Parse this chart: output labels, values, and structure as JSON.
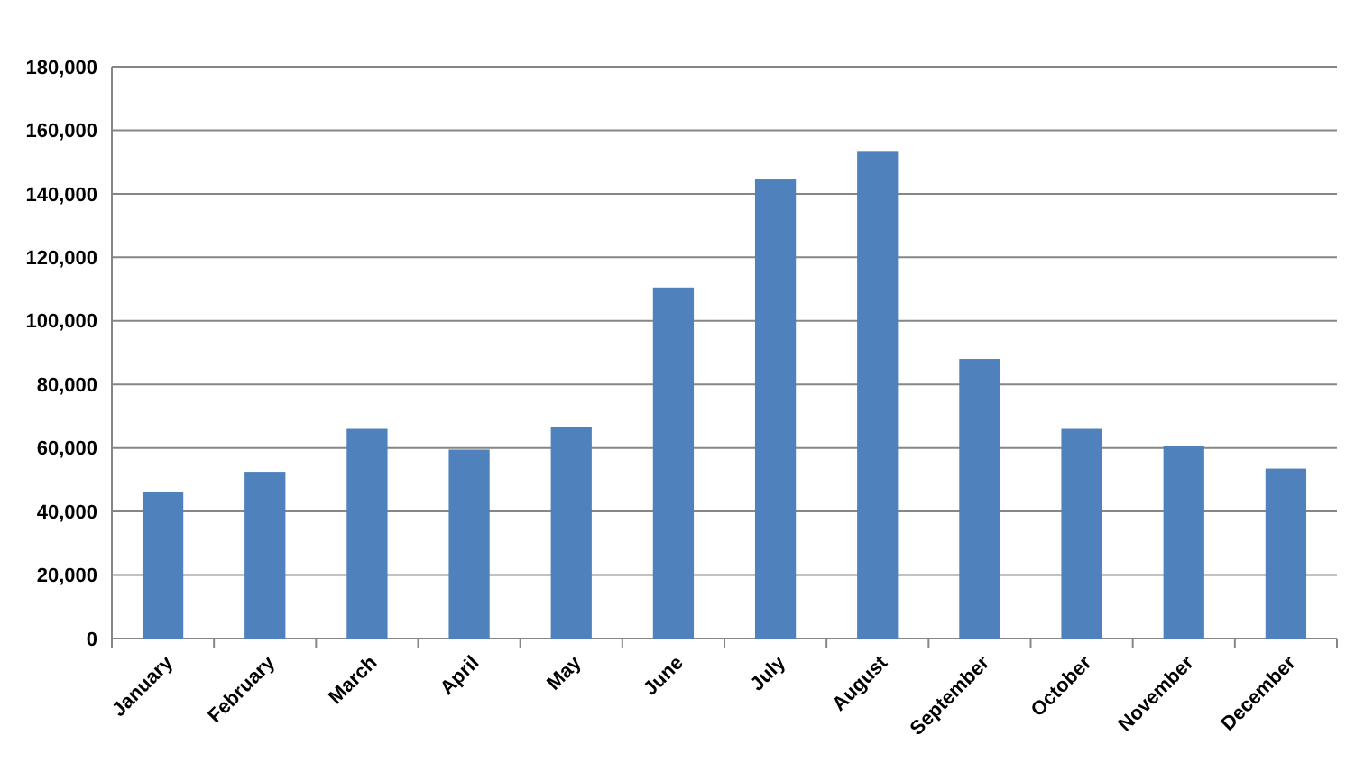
{
  "chart_data": {
    "type": "bar",
    "categories": [
      "January",
      "February",
      "March",
      "April",
      "May",
      "June",
      "July",
      "August",
      "September",
      "October",
      "November",
      "December"
    ],
    "values": [
      46000,
      52500,
      66000,
      59500,
      66500,
      110500,
      144500,
      153500,
      88000,
      66000,
      60500,
      53500
    ],
    "color": "#4f81bd",
    "ylim": [
      0,
      180000
    ],
    "yticks": [
      {
        "value": 0,
        "label": "0"
      },
      {
        "value": 20000,
        "label": "20,000"
      },
      {
        "value": 40000,
        "label": "40,000"
      },
      {
        "value": 60000,
        "label": "60,000"
      },
      {
        "value": 80000,
        "label": "80,000"
      },
      {
        "value": 100000,
        "label": "100,000"
      },
      {
        "value": 120000,
        "label": "120,000"
      },
      {
        "value": 140000,
        "label": "140,000"
      },
      {
        "value": 160000,
        "label": "160,000"
      },
      {
        "value": 180000,
        "label": "180,000"
      }
    ],
    "grid": "y"
  }
}
